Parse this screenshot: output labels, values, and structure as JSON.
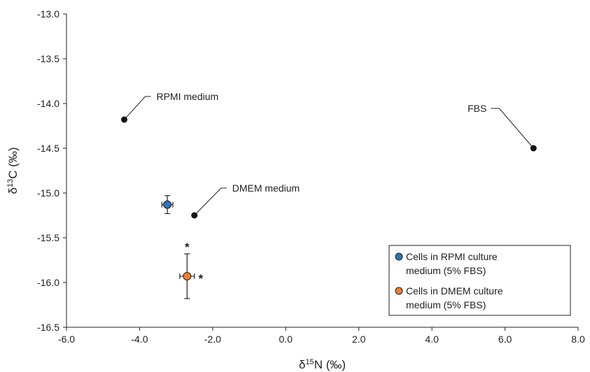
{
  "chart_data": {
    "type": "scatter",
    "xlabel": {
      "base": "δ",
      "sup": "15",
      "rest": "N (‰)"
    },
    "ylabel": {
      "base": "δ",
      "sup": "13",
      "rest": "C (‰)"
    },
    "xlim": [
      -6.0,
      8.0
    ],
    "ylim": [
      -16.5,
      -13.0
    ],
    "x_ticks": [
      -6.0,
      -4.0,
      -2.0,
      0.0,
      2.0,
      4.0,
      6.0,
      8.0
    ],
    "y_ticks": [
      -13.0,
      -13.5,
      -14.0,
      -14.5,
      -15.0,
      -15.5,
      -16.0,
      -16.5
    ],
    "x_tick_labels": [
      "-6.0",
      "-4.0",
      "-2.0",
      "0.0",
      "2.0",
      "4.0",
      "6.0",
      "8.0"
    ],
    "y_tick_labels": [
      "-13.0",
      "-13.5",
      "-14.0",
      "-14.5",
      "-15.0",
      "-15.5",
      "-16.0",
      "-16.5"
    ],
    "grid": false,
    "legend_position": "bottom-right",
    "reference_points": [
      {
        "name": "RPMI medium",
        "x": -4.42,
        "y": -14.18
      },
      {
        "name": "FBS",
        "x": 6.78,
        "y": -14.5
      },
      {
        "name": "DMEM medium",
        "x": -2.5,
        "y": -15.25
      }
    ],
    "series": [
      {
        "name": "Cells in RPMI culture medium (5% FBS)",
        "legend_lines": [
          "Cells in RPMI culture",
          "medium (5% FBS)"
        ],
        "color": "#2e75b6",
        "x": -3.24,
        "y": -15.13,
        "x_err": 0.15,
        "y_err": 0.1,
        "x_star": false,
        "y_star": false
      },
      {
        "name": "Cells in DMEM culture medium (5% FBS)",
        "legend_lines": [
          "Cells in DMEM culture",
          "medium (5% FBS)"
        ],
        "color": "#ed7d31",
        "x": -2.7,
        "y": -15.93,
        "x_err": 0.2,
        "y_err": 0.25,
        "x_star": true,
        "y_star": true
      }
    ],
    "significance_marker": "*"
  }
}
